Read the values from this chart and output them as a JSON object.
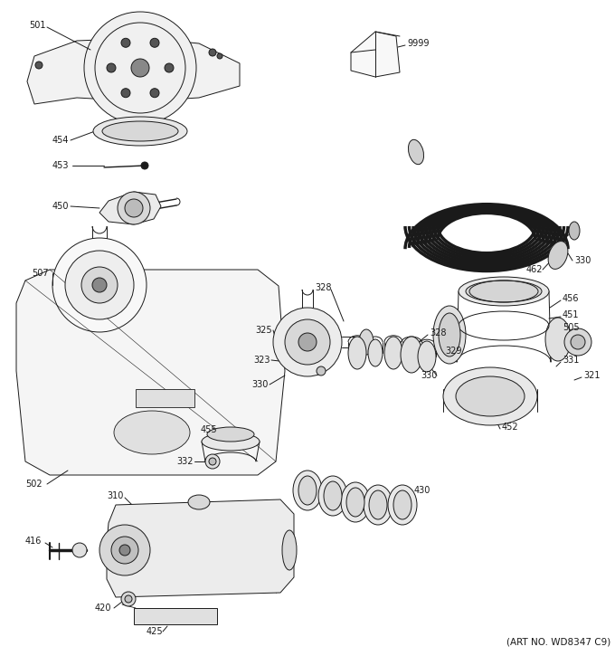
{
  "bg_color": "#ffffff",
  "fig_width": 6.8,
  "fig_height": 7.25,
  "dpi": 100,
  "art_no": "(ART NO. WD8347 C9)",
  "lc": "#1a1a1a",
  "lw": 0.7,
  "fs": 7.0
}
